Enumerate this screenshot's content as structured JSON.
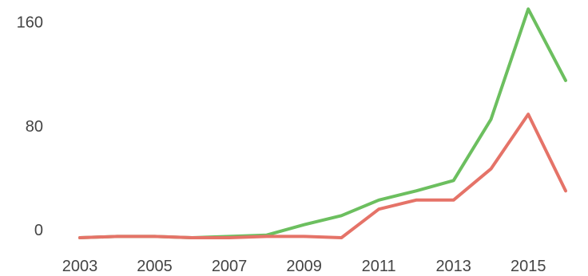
{
  "chart_data": {
    "type": "line",
    "title": "",
    "xlabel": "",
    "ylabel": "",
    "x": [
      2003,
      2004,
      2005,
      2006,
      2007,
      2008,
      2009,
      2010,
      2011,
      2012,
      2013,
      2014,
      2015,
      2016
    ],
    "x_tick_labels": [
      "2003",
      "2005",
      "2007",
      "2009",
      "2011",
      "2013",
      "2015"
    ],
    "y_tick_labels": [
      "0",
      "80",
      "160"
    ],
    "y_ticks": [
      0,
      80,
      160
    ],
    "xlim": [
      2003,
      2016
    ],
    "ylim": [
      -6,
      172
    ],
    "grid": false,
    "series": [
      {
        "color": "#6cbf5f",
        "values": [
          -6,
          -5,
          -5,
          -6,
          -5,
          -4,
          4,
          11,
          23,
          30,
          38,
          85,
          170,
          115
        ]
      },
      {
        "color": "#e57368",
        "values": [
          -6,
          -5,
          -5,
          -6,
          -6,
          -5,
          -5,
          -6,
          16,
          23,
          23,
          47,
          89,
          30
        ]
      }
    ]
  }
}
